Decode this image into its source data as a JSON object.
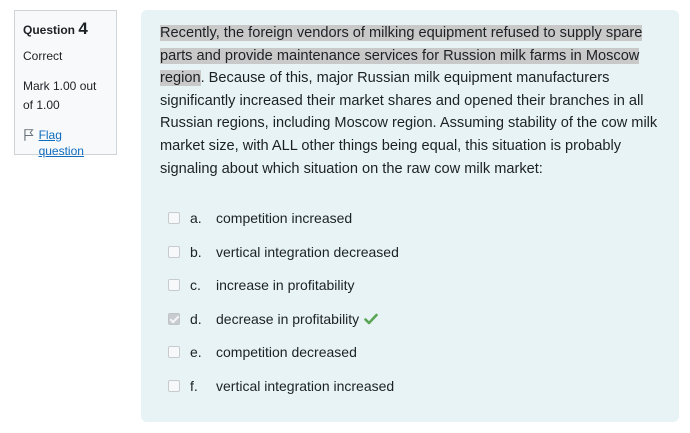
{
  "info": {
    "question_label": "Question",
    "question_number": "4",
    "state": "Correct",
    "grade": "Mark 1.00 out of 1.00",
    "flag_label": "Flag question"
  },
  "question": {
    "highlighted_text": "Recently, the foreign vendors of milking equipment refused to supply spare parts and provide maintenance services for Russion milk farms in Moscow region",
    "rest_text": ". Because of this, major Russian milk equipment manufacturers significantly increased their market shares and opened their branches in all Russian regions, including Moscow region. Assuming stability of the cow milk market size, with ALL other things being equal, this situation is probably signaling about which situation on the raw cow milk market:"
  },
  "answers": [
    {
      "letter": "a.",
      "text": "competition increased",
      "checked": false
    },
    {
      "letter": "b.",
      "text": "vertical integration decreased",
      "checked": false
    },
    {
      "letter": "c.",
      "text": "increase in profitability",
      "checked": false
    },
    {
      "letter": "d.",
      "text": "decrease in profitability",
      "checked": true
    },
    {
      "letter": "e.",
      "text": "competition decreased",
      "checked": false
    },
    {
      "letter": "f.",
      "text": "vertical integration increased",
      "checked": false
    }
  ],
  "colors": {
    "content_bg": "#e7f3f5",
    "info_bg": "#f8f9fa",
    "link": "#0f6cbf",
    "correct": "#357a32",
    "highlight": "#c9c9c9"
  },
  "icons": {
    "flag": "flag-icon",
    "correct": "checkmark-icon"
  }
}
